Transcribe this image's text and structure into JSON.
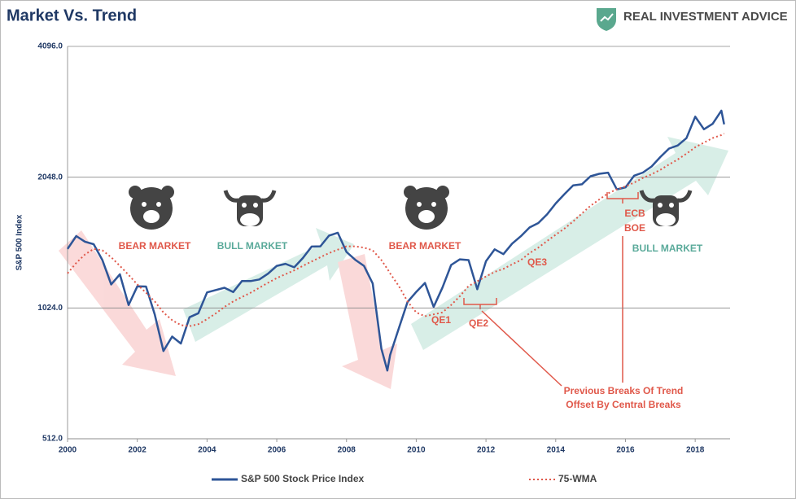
{
  "brand": "REAL INVESTMENT ADVICE",
  "chart_data": {
    "type": "line",
    "title": "Market Vs. Trend",
    "y_label": "S&P 500 Index",
    "yscale": "log",
    "log_base": 2,
    "grid": true,
    "xlim": [
      2000,
      2019
    ],
    "xticks": [
      2000,
      2002,
      2004,
      2006,
      2008,
      2010,
      2012,
      2014,
      2016,
      2018
    ],
    "ylim": [
      512,
      4096
    ],
    "yticks": [
      {
        "value": 512,
        "label": "512.0"
      },
      {
        "value": 1024,
        "label": "1024.0"
      },
      {
        "value": 2048,
        "label": "2048.0"
      },
      {
        "value": 4096,
        "label": "4096.0"
      }
    ],
    "x": [
      2000,
      2000.25,
      2000.5,
      2000.75,
      2001,
      2001.25,
      2001.5,
      2001.75,
      2002,
      2002.25,
      2002.5,
      2002.75,
      2003,
      2003.25,
      2003.5,
      2003.75,
      2004,
      2004.25,
      2004.5,
      2004.75,
      2005,
      2005.25,
      2005.5,
      2005.75,
      2006,
      2006.25,
      2006.5,
      2006.75,
      2007,
      2007.25,
      2007.5,
      2007.75,
      2008,
      2008.25,
      2008.5,
      2008.75,
      2009,
      2009.17,
      2009.25,
      2009.5,
      2009.75,
      2010,
      2010.25,
      2010.5,
      2010.75,
      2011,
      2011.25,
      2011.5,
      2011.75,
      2012,
      2012.25,
      2012.5,
      2012.75,
      2013,
      2013.25,
      2013.5,
      2013.75,
      2014,
      2014.25,
      2014.5,
      2014.75,
      2015,
      2015.25,
      2015.5,
      2015.75,
      2016,
      2016.25,
      2016.5,
      2016.75,
      2017,
      2017.25,
      2017.5,
      2017.75,
      2018,
      2018.25,
      2018.5,
      2018.75,
      2018.83
    ],
    "series": [
      {
        "name": "S&P 500 Stock Price Index",
        "color": "#2e5597",
        "style": "solid",
        "values": [
          1400,
          1499,
          1455,
          1436,
          1320,
          1160,
          1224,
          1040,
          1148,
          1147,
          990,
          815,
          880,
          848,
          975,
          996,
          1112,
          1126,
          1140,
          1114,
          1181,
          1181,
          1191,
          1228,
          1280,
          1294,
          1270,
          1335,
          1418,
          1420,
          1503,
          1526,
          1378,
          1322,
          1280,
          1166,
          825,
          735,
          798,
          919,
          1057,
          1115,
          1169,
          1030,
          1141,
          1286,
          1325,
          1320,
          1131,
          1312,
          1397,
          1362,
          1440,
          1498,
          1569,
          1606,
          1681,
          1782,
          1872,
          1960,
          1972,
          2058,
          2085,
          2098,
          1920,
          1940,
          2065,
          2099,
          2168,
          2279,
          2384,
          2423,
          2519,
          2823,
          2640,
          2718,
          2914,
          2711
        ]
      },
      {
        "name": "75-WMA",
        "color": "#e0584a",
        "style": "dotted",
        "values": [
          1230,
          1300,
          1360,
          1400,
          1390,
          1340,
          1280,
          1220,
          1160,
          1110,
          1060,
          1000,
          960,
          935,
          930,
          940,
          965,
          995,
          1030,
          1060,
          1085,
          1110,
          1140,
          1170,
          1200,
          1225,
          1250,
          1280,
          1310,
          1340,
          1370,
          1395,
          1420,
          1420,
          1410,
          1390,
          1320,
          1260,
          1230,
          1150,
          1060,
          1000,
          980,
          990,
          1000,
          1040,
          1090,
          1150,
          1180,
          1210,
          1240,
          1260,
          1290,
          1320,
          1370,
          1410,
          1460,
          1510,
          1560,
          1620,
          1690,
          1760,
          1820,
          1880,
          1920,
          1950,
          1990,
          2040,
          2080,
          2130,
          2190,
          2250,
          2320,
          2400,
          2460,
          2520,
          2560,
          2580
        ]
      }
    ],
    "annotations": [
      "BEAR MARKET",
      "BULL MARKET",
      "BEAR MARKET",
      "BULL MARKET",
      "QE1",
      "QE2",
      "QE3",
      "ECB",
      "BOE",
      "Previous Breaks Of Trend",
      "Offset By Central Breaks"
    ]
  }
}
